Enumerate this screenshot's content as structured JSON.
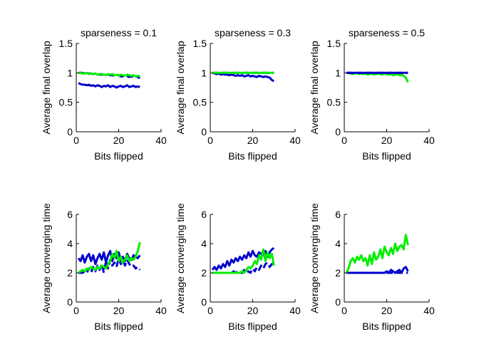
{
  "chart_data": [
    {
      "type": "line",
      "title": "sparseness = 0.1",
      "xlabel": "Bits flipped",
      "ylabel": "Average final overlap",
      "xlim": [
        0,
        40
      ],
      "ylim": [
        0,
        1.5
      ],
      "xticks": [
        "0",
        "20",
        "40"
      ],
      "yticks": [
        "0",
        "0.5",
        "1",
        "1.5"
      ],
      "series": [
        {
          "color": "#0000cc",
          "style": "solid",
          "values": [
            0.83,
            0.81,
            0.8,
            0.8,
            0.79,
            0.8,
            0.78,
            0.79,
            0.77,
            0.79,
            0.78,
            0.76,
            0.78,
            0.77,
            0.79,
            0.76,
            0.78,
            0.77,
            0.75,
            0.77,
            0.78,
            0.76,
            0.77,
            0.79,
            0.76,
            0.77,
            0.78,
            0.76,
            0.77,
            0.76
          ]
        },
        {
          "color": "#0000cc",
          "style": "dashed",
          "values": [
            1.0,
            1.0,
            1.0,
            0.99,
            1.0,
            0.99,
            0.99,
            0.98,
            0.98,
            0.98,
            0.97,
            0.97,
            0.97,
            0.96,
            0.97,
            0.96,
            0.96,
            0.95,
            0.95,
            0.96,
            0.94,
            0.94,
            0.95,
            0.94,
            0.93,
            0.94,
            0.93,
            0.92,
            0.93,
            0.91
          ]
        },
        {
          "color": "#00ee00",
          "style": "solid",
          "values": [
            1.0,
            1.0,
            0.99,
            0.99,
            1.0,
            0.98,
            0.99,
            0.98,
            0.99,
            0.97,
            0.98,
            0.98,
            0.97,
            0.96,
            0.98,
            0.97,
            0.98,
            0.96,
            0.97,
            0.95,
            0.97,
            0.96,
            0.95,
            0.97,
            0.96,
            0.95,
            0.96,
            0.94,
            0.95,
            0.94
          ]
        }
      ]
    },
    {
      "type": "line",
      "title": "sparseness = 0.3",
      "xlabel": "Bits flipped",
      "ylabel": "Average final overlap",
      "xlim": [
        0,
        40
      ],
      "ylim": [
        0,
        1.5
      ],
      "xticks": [
        "0",
        "20",
        "40"
      ],
      "yticks": [
        "0",
        "0.5",
        "1",
        "1.5"
      ],
      "series": [
        {
          "color": "#0000cc",
          "style": "solid",
          "values": [
            1.0,
            0.99,
            0.98,
            0.99,
            0.97,
            0.98,
            0.97,
            0.97,
            0.96,
            0.97,
            0.96,
            0.95,
            0.96,
            0.95,
            0.96,
            0.94,
            0.95,
            0.96,
            0.94,
            0.95,
            0.94,
            0.93,
            0.95,
            0.94,
            0.93,
            0.94,
            0.93,
            0.92,
            0.88,
            0.86
          ]
        },
        {
          "color": "#0000cc",
          "style": "dashed",
          "values": [
            1.0,
            1.0,
            1.0,
            1.0,
            1.0,
            1.0,
            1.0,
            1.0,
            1.0,
            1.0,
            1.0,
            1.0,
            1.0,
            1.0,
            1.0,
            1.0,
            1.0,
            1.0,
            1.0,
            1.0,
            1.0,
            1.0,
            1.0,
            1.0,
            1.0,
            1.0,
            1.0,
            1.0,
            1.0,
            1.0
          ]
        },
        {
          "color": "#00ee00",
          "style": "solid",
          "values": [
            1.0,
            1.0,
            1.0,
            1.0,
            1.0,
            1.0,
            1.0,
            1.0,
            1.0,
            1.0,
            1.0,
            1.0,
            1.0,
            1.0,
            1.0,
            1.0,
            1.0,
            1.0,
            1.0,
            1.0,
            1.0,
            1.0,
            1.0,
            1.0,
            1.0,
            1.0,
            1.0,
            1.0,
            1.0,
            1.0
          ]
        }
      ]
    },
    {
      "type": "line",
      "title": "sparseness = 0.5",
      "xlabel": "Bits flipped",
      "ylabel": "Average final overlap",
      "xlim": [
        0,
        40
      ],
      "ylim": [
        0,
        1.5
      ],
      "xticks": [
        "0",
        "20",
        "40"
      ],
      "yticks": [
        "0",
        "0.5",
        "1",
        "1.5"
      ],
      "series": [
        {
          "color": "#00ee00",
          "style": "solid",
          "values": [
            1.0,
            1.0,
            0.99,
            0.98,
            0.99,
            1.0,
            0.98,
            0.99,
            0.98,
            0.99,
            0.97,
            0.98,
            0.99,
            0.97,
            0.98,
            0.99,
            0.98,
            0.97,
            0.99,
            0.98,
            0.97,
            0.98,
            0.96,
            0.97,
            0.98,
            0.96,
            0.97,
            0.95,
            0.92,
            0.84
          ]
        },
        {
          "color": "#0000cc",
          "style": "dashed",
          "values": [
            1.0,
            1.0,
            1.0,
            1.0,
            1.0,
            1.0,
            1.0,
            1.0,
            1.0,
            1.0,
            1.0,
            1.0,
            1.0,
            1.0,
            1.0,
            1.0,
            1.0,
            1.0,
            1.0,
            1.0,
            1.0,
            1.0,
            1.0,
            1.0,
            1.0,
            1.0,
            1.0,
            1.0,
            1.0,
            1.0
          ]
        },
        {
          "color": "#0000cc",
          "style": "solid",
          "values": [
            1.0,
            1.0,
            1.0,
            1.0,
            1.0,
            1.0,
            1.0,
            1.0,
            1.0,
            1.0,
            1.0,
            1.0,
            1.0,
            1.0,
            1.0,
            1.0,
            1.0,
            1.0,
            1.0,
            1.0,
            1.0,
            1.0,
            1.0,
            1.0,
            1.0,
            1.0,
            1.0,
            1.0,
            1.0,
            1.0
          ]
        }
      ]
    },
    {
      "type": "line",
      "title": "",
      "xlabel": "Bits flipped",
      "ylabel": "Average converging time",
      "xlim": [
        0,
        40
      ],
      "ylim": [
        0,
        6
      ],
      "xticks": [
        "0",
        "20",
        "40"
      ],
      "yticks": [
        "0",
        "2",
        "4",
        "6"
      ],
      "series": [
        {
          "color": "#0000cc",
          "style": "solid",
          "values": [
            3.0,
            2.8,
            3.2,
            2.7,
            3.1,
            3.3,
            2.8,
            3.2,
            2.6,
            3.0,
            3.3,
            2.9,
            3.4,
            2.7,
            3.2,
            3.5,
            2.8,
            3.3,
            3.0,
            3.4,
            2.9,
            3.1,
            2.8,
            3.3,
            3.0,
            2.9,
            3.2,
            3.1,
            3.0,
            3.2
          ]
        },
        {
          "color": "#0000cc",
          "style": "dashed",
          "values": [
            2.0,
            2.0,
            2.0,
            2.1,
            2.0,
            2.3,
            2.0,
            2.4,
            2.1,
            2.5,
            2.2,
            2.6,
            2.0,
            2.8,
            2.3,
            2.9,
            2.5,
            2.7,
            2.4,
            3.0,
            2.6,
            2.8,
            2.5,
            2.9,
            2.6,
            2.4,
            2.5,
            2.3,
            2.4,
            2.2
          ]
        },
        {
          "color": "#00ee00",
          "style": "solid",
          "values": [
            2.0,
            2.1,
            2.2,
            2.1,
            2.3,
            2.2,
            2.4,
            2.3,
            2.2,
            2.4,
            2.3,
            2.5,
            2.4,
            2.3,
            2.6,
            2.8,
            3.3,
            3.0,
            3.5,
            2.8,
            3.1,
            2.7,
            2.9,
            3.2,
            2.8,
            3.0,
            2.9,
            3.1,
            3.5,
            4.1
          ]
        }
      ]
    },
    {
      "type": "line",
      "title": "",
      "xlabel": "Bits flipped",
      "ylabel": "Average converging time",
      "xlim": [
        0,
        40
      ],
      "ylim": [
        0,
        6
      ],
      "xticks": [
        "0",
        "20",
        "40"
      ],
      "yticks": [
        "0",
        "2",
        "4",
        "6"
      ],
      "series": [
        {
          "color": "#0000cc",
          "style": "solid",
          "values": [
            2.2,
            2.4,
            2.2,
            2.5,
            2.3,
            2.6,
            2.4,
            2.8,
            2.5,
            2.9,
            2.7,
            3.0,
            2.8,
            3.1,
            2.9,
            3.2,
            3.0,
            3.4,
            3.1,
            3.5,
            3.2,
            3.1,
            3.4,
            3.3,
            3.2,
            3.5,
            3.1,
            3.4,
            3.6,
            3.7
          ]
        },
        {
          "color": "#0000cc",
          "style": "dashed",
          "values": [
            2.0,
            2.0,
            2.0,
            2.0,
            2.0,
            2.0,
            2.0,
            2.0,
            2.0,
            2.0,
            2.1,
            2.0,
            2.1,
            2.0,
            2.0,
            2.2,
            2.0,
            2.1,
            2.0,
            2.3,
            2.1,
            2.4,
            2.2,
            2.5,
            2.3,
            2.6,
            2.7,
            2.4,
            2.6,
            2.5
          ]
        },
        {
          "color": "#00ee00",
          "style": "solid",
          "values": [
            2.0,
            2.0,
            2.0,
            2.0,
            2.0,
            2.0,
            2.0,
            2.0,
            2.0,
            2.0,
            2.0,
            2.0,
            2.0,
            2.0,
            2.1,
            2.0,
            2.2,
            2.4,
            2.3,
            2.5,
            2.8,
            2.6,
            3.2,
            2.9,
            3.6,
            2.8,
            3.4,
            3.0,
            3.3,
            2.5
          ]
        }
      ]
    },
    {
      "type": "line",
      "title": "",
      "xlabel": "Bits flipped",
      "ylabel": "Average converging time",
      "xlim": [
        0,
        40
      ],
      "ylim": [
        0,
        6
      ],
      "xticks": [
        "0",
        "20",
        "40"
      ],
      "yticks": [
        "0",
        "2",
        "4",
        "6"
      ],
      "series": [
        {
          "color": "#0000cc",
          "style": "dashed",
          "values": [
            2.0,
            2.0,
            2.0,
            2.0,
            2.0,
            2.0,
            2.0,
            2.0,
            2.0,
            2.0,
            2.0,
            2.0,
            2.0,
            2.0,
            2.0,
            2.0,
            2.0,
            2.0,
            2.0,
            2.0,
            2.0,
            2.0,
            2.0,
            2.0,
            2.0,
            2.0,
            2.0,
            2.0,
            2.0,
            2.0
          ]
        },
        {
          "color": "#0000cc",
          "style": "solid",
          "values": [
            2.0,
            2.0,
            2.0,
            2.0,
            2.0,
            2.0,
            2.0,
            2.0,
            2.0,
            2.0,
            2.0,
            2.0,
            2.0,
            2.0,
            2.0,
            2.0,
            2.0,
            2.0,
            2.0,
            2.1,
            2.0,
            2.2,
            2.1,
            2.0,
            2.1,
            2.2,
            2.0,
            2.3,
            2.4,
            2.1
          ]
        },
        {
          "color": "#00ee00",
          "style": "solid",
          "values": [
            2.0,
            2.3,
            2.8,
            3.0,
            2.7,
            3.1,
            2.9,
            3.2,
            2.8,
            3.0,
            2.5,
            3.2,
            2.6,
            3.4,
            2.9,
            3.1,
            3.6,
            3.0,
            3.8,
            3.4,
            3.2,
            3.7,
            3.3,
            4.0,
            3.5,
            3.8,
            3.9,
            3.6,
            4.6,
            3.9
          ]
        }
      ]
    }
  ]
}
